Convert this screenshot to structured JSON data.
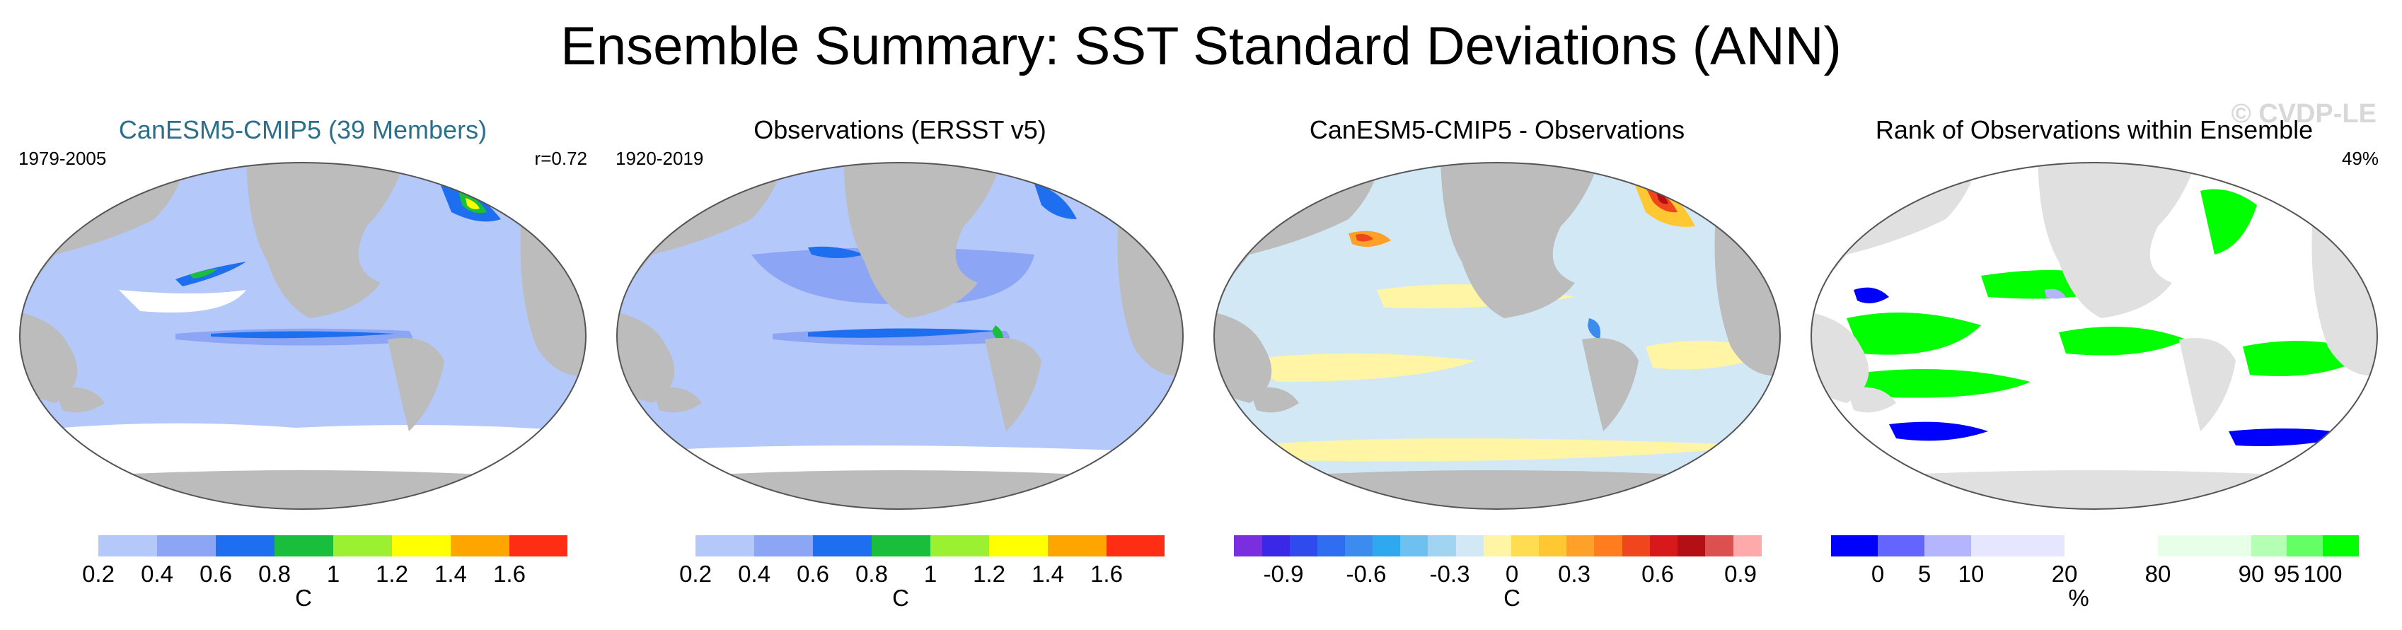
{
  "title": "Ensemble Summary: SST Standard Deviations (ANN)",
  "watermark": "© CVDP-LE",
  "panels": [
    {
      "title": "CanESM5-CMIP5 (39 Members)",
      "period": "1979-2005",
      "corner": "r=0.72",
      "colorbar": {
        "colors": [
          "#ffffff",
          "#b4c8fa",
          "#8ca5f5",
          "#1e6ef0",
          "#19be3c",
          "#9bf032",
          "#ffff00",
          "#ffa500",
          "#ff2d14"
        ],
        "ticks": [
          "0.2",
          "0.4",
          "0.6",
          "0.8",
          "1",
          "1.2",
          "1.4",
          "1.6"
        ],
        "unit": "C"
      }
    },
    {
      "title": "Observations (ERSST v5)",
      "period": "1920-2019",
      "corner": "",
      "colorbar": {
        "colors": [
          "#ffffff",
          "#b4c8fa",
          "#8ca5f5",
          "#1e6ef0",
          "#19be3c",
          "#9bf032",
          "#ffff00",
          "#ffa500",
          "#ff2d14"
        ],
        "ticks": [
          "0.2",
          "0.4",
          "0.6",
          "0.8",
          "1",
          "1.2",
          "1.4",
          "1.6"
        ],
        "unit": "C"
      }
    },
    {
      "title": "CanESM5-CMIP5 - Observations",
      "period": "",
      "corner": "",
      "colorbar": {
        "colors": [
          "#7b2ee0",
          "#3a28e6",
          "#2f4bee",
          "#2f6ef0",
          "#3c8cf0",
          "#2fa8f0",
          "#6ec0f0",
          "#a0d4f0",
          "#d2e8f5",
          "#fff5a5",
          "#ffdc50",
          "#ffc832",
          "#ffa028",
          "#ff7d1e",
          "#f0461e",
          "#d7191c",
          "#b40f14",
          "#dc5050",
          "#ffaaaa"
        ],
        "ticks": [
          "-0.9",
          "-0.6",
          "-0.3",
          "0",
          "0.3",
          "0.6",
          "0.9"
        ],
        "unit": "C"
      }
    },
    {
      "title": "Rank of Observations within Ensemble",
      "period": "",
      "corner": "49%",
      "colorbar": {
        "colors": [
          "#0000ff",
          "#6464ff",
          "#b4b4ff",
          "#e6e6ff",
          "#ffffff",
          "#e6ffe6",
          "#b4ffb4",
          "#64ff64",
          "#00ff00"
        ],
        "ticks": [
          "0",
          "5",
          "10",
          "20",
          "80",
          "90",
          "95",
          "100"
        ],
        "unit": "%"
      }
    }
  ]
}
